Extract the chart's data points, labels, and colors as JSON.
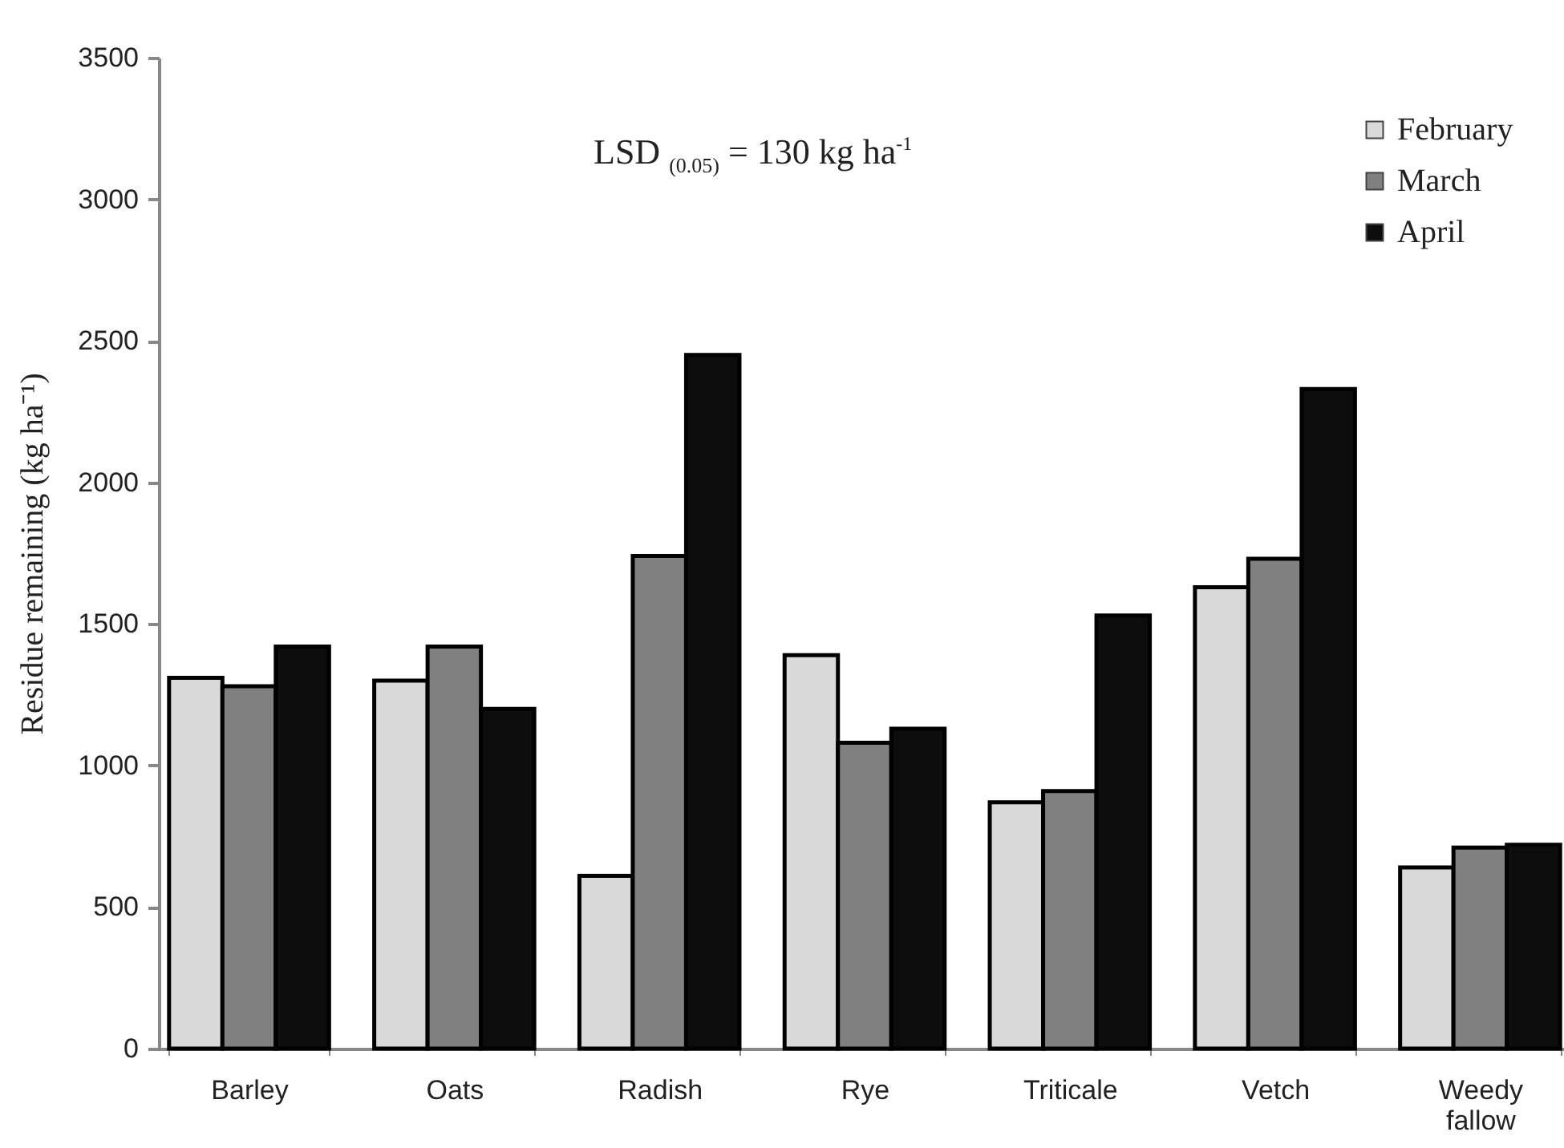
{
  "chart_data": {
    "type": "bar",
    "ylabel": "Residue remaining (kg ha⁻¹)",
    "categories": [
      "Barley",
      "Oats",
      "Radish",
      "Rye",
      "Triticale",
      "Vetch",
      "Weedy fallow"
    ],
    "series": [
      {
        "name": "February",
        "color": "#d9d9d9",
        "values": [
          1310,
          1300,
          610,
          1390,
          870,
          1630,
          640
        ]
      },
      {
        "name": "March",
        "color": "#808080",
        "values": [
          1280,
          1420,
          1740,
          1080,
          910,
          1730,
          710
        ]
      },
      {
        "name": "April",
        "color": "#0d0d0d",
        "values": [
          1420,
          1200,
          2450,
          1130,
          1530,
          2330,
          720
        ]
      }
    ],
    "ylim": [
      0,
      3500
    ],
    "yticks": [
      0,
      500,
      1000,
      1500,
      2000,
      2500,
      3000,
      3500
    ],
    "annotations": [
      "LSD $_{(0.05)}$ = 130 kg ha$^{-1}$"
    ],
    "legend": "top right",
    "grid": false
  }
}
